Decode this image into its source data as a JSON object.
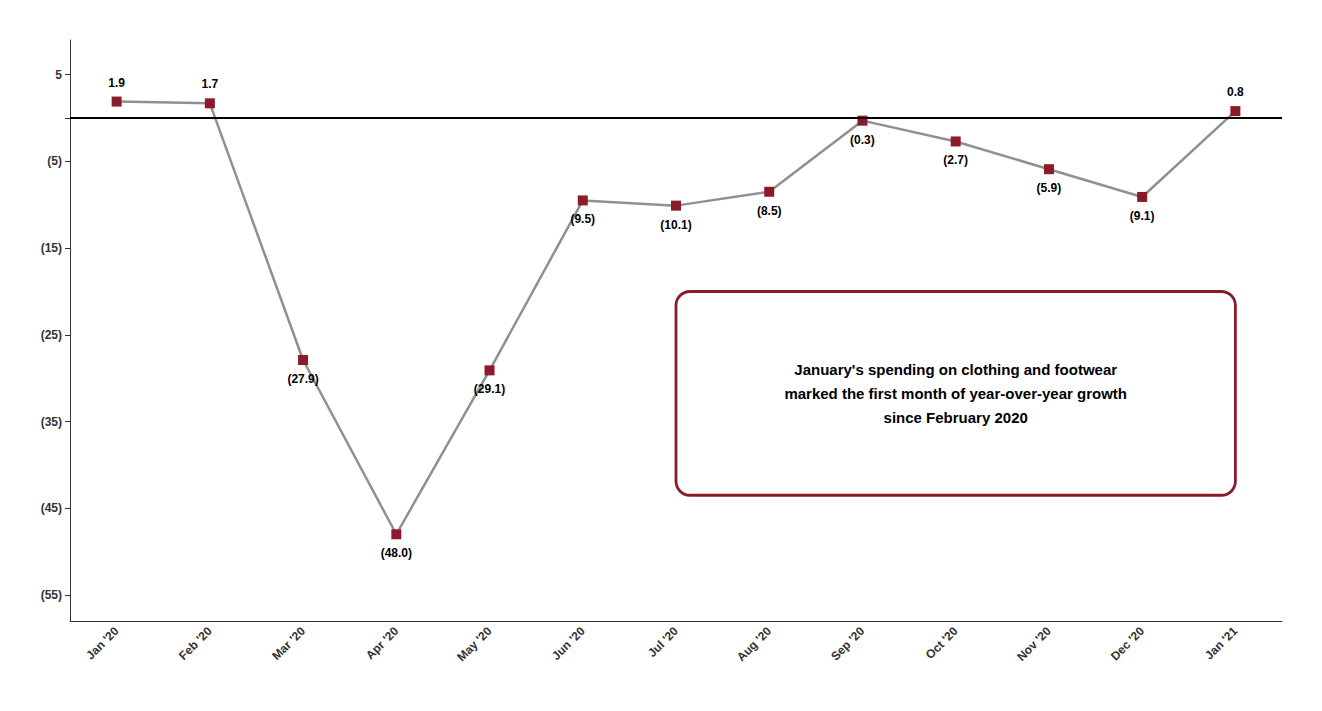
{
  "chart_data": {
    "type": "line",
    "categories": [
      "Jan '20",
      "Feb '20",
      "Mar '20",
      "Apr '20",
      "May '20",
      "Jun '20",
      "Jul '20",
      "Aug '20",
      "Sep '20",
      "Oct '20",
      "Nov '20",
      "Dec '20",
      "Jan '21"
    ],
    "values": [
      1.9,
      1.7,
      -27.9,
      -48.0,
      -29.1,
      -9.5,
      -10.1,
      -8.5,
      -0.3,
      -2.7,
      -5.9,
      -9.1,
      0.8
    ],
    "value_labels": [
      "1.9",
      "1.7",
      "(27.9)",
      "(48.0)",
      "(29.1)",
      "(9.5)",
      "(10.1)",
      "(8.5)",
      "(0.3)",
      "(2.7)",
      "(5.9)",
      "(9.1)",
      "0.8"
    ],
    "data_labels": true,
    "color": "#909090",
    "colors": [
      "#8B1A2A",
      "#8B1A2A",
      "#8B1A2A",
      "#8B1A2A",
      "#8B1A2A",
      "#8B1A2A",
      "#8B1A2A",
      "#8B1A2A",
      "#8B1A2A",
      "#8B1A2A",
      "#8B1A2A",
      "#8B1A2A",
      "#8B1A2A"
    ],
    "marker": "square",
    "ylim": [
      -58,
      9
    ],
    "yticks": [
      5,
      {
        "value": 0,
        "label": ""
      },
      {
        "value": -5,
        "label": "(5)"
      },
      {
        "value": -15,
        "label": "(15)"
      },
      {
        "value": -25,
        "label": "(25)"
      },
      {
        "value": -35,
        "label": "(35)"
      },
      {
        "value": -45,
        "label": "(45)"
      },
      {
        "value": -55,
        "label": "(55)"
      }
    ],
    "grid": false,
    "annotation": "January's spending on clothing and footwear\nmarked the first month of year-over-year growth\nsince February 2020"
  }
}
